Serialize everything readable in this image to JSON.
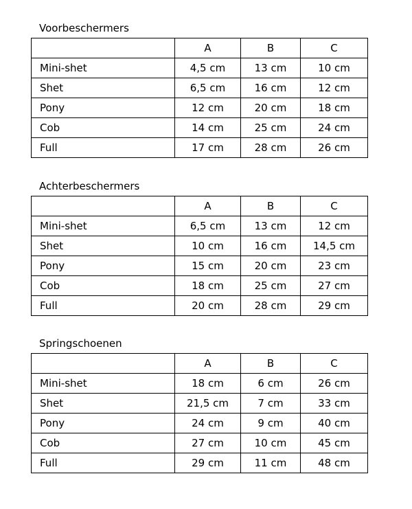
{
  "columns": [
    "",
    "A",
    "B",
    "C"
  ],
  "tables": [
    {
      "title": "Voorbeschermers",
      "rows": [
        {
          "label": "Mini-shet",
          "values": [
            "4,5 cm",
            "13 cm",
            "10 cm"
          ]
        },
        {
          "label": "Shet",
          "values": [
            "6,5 cm",
            "16 cm",
            "12 cm"
          ]
        },
        {
          "label": "Pony",
          "values": [
            "12 cm",
            "20 cm",
            "18 cm"
          ]
        },
        {
          "label": "Cob",
          "values": [
            "14 cm",
            "25 cm",
            "24 cm"
          ]
        },
        {
          "label": "Full",
          "values": [
            "17 cm",
            "28 cm",
            "26 cm"
          ]
        }
      ]
    },
    {
      "title": "Achterbeschermers",
      "rows": [
        {
          "label": "Mini-shet",
          "values": [
            "6,5 cm",
            "13 cm",
            "12 cm"
          ]
        },
        {
          "label": "Shet",
          "values": [
            "10 cm",
            "16 cm",
            "14,5 cm"
          ]
        },
        {
          "label": "Pony",
          "values": [
            "15 cm",
            "20 cm",
            "23 cm"
          ]
        },
        {
          "label": "Cob",
          "values": [
            "18 cm",
            "25 cm",
            "27 cm"
          ]
        },
        {
          "label": "Full",
          "values": [
            "20 cm",
            "28 cm",
            "29 cm"
          ]
        }
      ]
    },
    {
      "title": "Springschoenen",
      "rows": [
        {
          "label": "Mini-shet",
          "values": [
            "18 cm",
            "6 cm",
            "26 cm"
          ]
        },
        {
          "label": "Shet",
          "values": [
            "21,5 cm",
            "7 cm",
            "33 cm"
          ]
        },
        {
          "label": "Pony",
          "values": [
            "24 cm",
            "9 cm",
            "40 cm"
          ]
        },
        {
          "label": "Cob",
          "values": [
            "27 cm",
            "10 cm",
            "45 cm"
          ]
        },
        {
          "label": "Full",
          "values": [
            "29 cm",
            "11 cm",
            "48 cm"
          ]
        }
      ]
    }
  ]
}
